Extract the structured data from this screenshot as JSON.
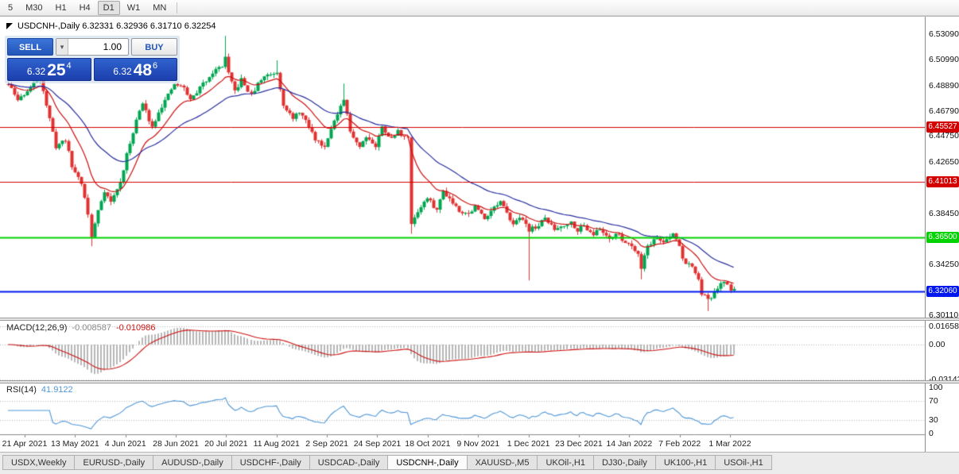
{
  "toolbar": {
    "timeframes": [
      "5",
      "M30",
      "H1",
      "H4",
      "D1",
      "W1",
      "MN"
    ],
    "active": "D1"
  },
  "chart": {
    "title": "USDCNH-,Daily 6.32331 6.32936 6.31710 6.32254"
  },
  "trade_panel": {
    "sell_label": "SELL",
    "buy_label": "BUY",
    "volume": "1.00",
    "sell_price": {
      "prefix": "6.32",
      "big": "25",
      "sup": "4"
    },
    "buy_price": {
      "prefix": "6.32",
      "big": "48",
      "sup": "6"
    }
  },
  "tabs": [
    {
      "label": "USDX,Weekly",
      "active": false
    },
    {
      "label": "EURUSD-,Daily",
      "active": false
    },
    {
      "label": "AUDUSD-,Daily",
      "active": false
    },
    {
      "label": "USDCHF-,Daily",
      "active": false
    },
    {
      "label": "USDCAD-,Daily",
      "active": false
    },
    {
      "label": "USDCNH-,Daily",
      "active": true
    },
    {
      "label": "XAUUSD-,M5",
      "active": false
    },
    {
      "label": "UKOil-,H1",
      "active": false
    },
    {
      "label": "DJ30-,Daily",
      "active": false
    },
    {
      "label": "UK100-,H1",
      "active": false
    },
    {
      "label": "USOil-,H1",
      "active": false
    }
  ],
  "chart_data": {
    "type": "candlestick",
    "symbol": "USDCNH-",
    "timeframe": "Daily",
    "ohlc": {
      "open": "6.32331",
      "high": "6.32936",
      "low": "6.31710",
      "close": "6.32254"
    },
    "y_range": [
      6.3011,
      6.5309
    ],
    "price_axis_ticks": [
      "6.53090",
      "6.50990",
      "6.48890",
      "6.46790",
      "6.44750",
      "6.42650",
      "6.38450",
      "6.34250",
      "6.30110"
    ],
    "x_dates": [
      "21 Apr 2021",
      "13 May 2021",
      "4 Jun 2021",
      "28 Jun 2021",
      "20 Jul 2021",
      "11 Aug 2021",
      "2 Sep 2021",
      "24 Sep 2021",
      "18 Oct 2021",
      "9 Nov 2021",
      "1 Dec 2021",
      "23 Dec 2021",
      "14 Jan 2022",
      "7 Feb 2022",
      "1 Mar 2022"
    ],
    "hlines": [
      {
        "price": 6.45527,
        "label": "6.45527",
        "color": "#d40000",
        "width": 1
      },
      {
        "price": 6.41013,
        "label": "6.41013",
        "color": "#d40000",
        "width": 1
      },
      {
        "price": 6.365,
        "label": "6.36500",
        "color": "#00d300",
        "width": 2
      },
      {
        "price": 6.3206,
        "label": "6.32060",
        "color": "#0018ee",
        "width": 2
      }
    ],
    "n_candles": 228,
    "seed": 11,
    "close_anchors": [
      [
        0,
        6.49
      ],
      [
        3,
        6.477
      ],
      [
        7,
        6.487
      ],
      [
        10,
        6.497
      ],
      [
        13,
        6.461
      ],
      [
        15,
        6.439
      ],
      [
        18,
        6.445
      ],
      [
        20,
        6.4226
      ],
      [
        23,
        6.4096
      ],
      [
        25,
        6.3838
      ],
      [
        26,
        6.3645
      ],
      [
        28,
        6.387
      ],
      [
        30,
        6.403
      ],
      [
        32,
        6.3935
      ],
      [
        35,
        6.4096
      ],
      [
        37,
        6.432
      ],
      [
        40,
        6.461
      ],
      [
        42,
        6.474
      ],
      [
        45,
        6.455
      ],
      [
        47,
        6.468
      ],
      [
        50,
        6.4806
      ],
      [
        52,
        6.49
      ],
      [
        55,
        6.487
      ],
      [
        57,
        6.477
      ],
      [
        60,
        6.487
      ],
      [
        62,
        6.4935
      ],
      [
        64,
        6.5
      ],
      [
        67,
        6.505
      ],
      [
        68,
        6.512
      ],
      [
        69,
        6.498
      ],
      [
        71,
        6.484
      ],
      [
        73,
        6.4935
      ],
      [
        76,
        6.4806
      ],
      [
        78,
        6.49
      ],
      [
        80,
        6.4968
      ],
      [
        84,
        6.5
      ],
      [
        86,
        6.474
      ],
      [
        89,
        6.461
      ],
      [
        91,
        6.468
      ],
      [
        94,
        6.455
      ],
      [
        96,
        6.445
      ],
      [
        99,
        6.439
      ],
      [
        101,
        6.455
      ],
      [
        103,
        6.4645
      ],
      [
        105,
        6.477
      ],
      [
        107,
        6.4515
      ],
      [
        110,
        6.439
      ],
      [
        112,
        6.448
      ],
      [
        115,
        6.439
      ],
      [
        117,
        6.455
      ],
      [
        120,
        6.445
      ],
      [
        122,
        6.4515
      ],
      [
        125,
        6.445
      ],
      [
        126,
        6.377
      ],
      [
        129,
        6.39
      ],
      [
        131,
        6.3967
      ],
      [
        134,
        6.387
      ],
      [
        136,
        6.403
      ],
      [
        139,
        6.3935
      ],
      [
        141,
        6.387
      ],
      [
        144,
        6.3838
      ],
      [
        146,
        6.39
      ],
      [
        149,
        6.3805
      ],
      [
        151,
        6.387
      ],
      [
        154,
        6.3935
      ],
      [
        156,
        6.3838
      ],
      [
        158,
        6.377
      ],
      [
        161,
        6.3805
      ],
      [
        163,
        6.371
      ],
      [
        166,
        6.3742
      ],
      [
        168,
        6.3805
      ],
      [
        171,
        6.371
      ],
      [
        173,
        6.3742
      ],
      [
        176,
        6.377
      ],
      [
        178,
        6.371
      ],
      [
        180,
        6.3742
      ],
      [
        183,
        6.3677
      ],
      [
        185,
        6.371
      ],
      [
        188,
        6.3645
      ],
      [
        190,
        6.3677
      ],
      [
        193,
        6.361
      ],
      [
        195,
        6.358
      ],
      [
        197,
        6.352
      ],
      [
        198,
        6.34
      ],
      [
        199,
        6.35
      ],
      [
        200,
        6.358
      ],
      [
        203,
        6.3645
      ],
      [
        205,
        6.361
      ],
      [
        207,
        6.3645
      ],
      [
        208,
        6.3677
      ],
      [
        210,
        6.358
      ],
      [
        211,
        6.348
      ],
      [
        212,
        6.342
      ],
      [
        213,
        6.345
      ],
      [
        215,
        6.3355
      ],
      [
        216,
        6.329
      ],
      [
        217,
        6.3193
      ],
      [
        219,
        6.313
      ],
      [
        220,
        6.316
      ],
      [
        221,
        6.3193
      ],
      [
        223,
        6.3257
      ],
      [
        224,
        6.329
      ],
      [
        226,
        6.3225
      ],
      [
        227,
        6.32254
      ]
    ],
    "wick_overrides": {
      "10": {
        "high": 6.503
      },
      "26": {
        "low": 6.3575
      },
      "68": {
        "high": 6.5295
      },
      "84": {
        "high": 6.5095
      },
      "105": {
        "high": 6.4905
      },
      "126": {
        "low": 6.3677
      },
      "163": {
        "low": 6.3295
      },
      "198": {
        "low": 6.3305
      },
      "219": {
        "low": 6.3045
      }
    },
    "moving_averages": [
      {
        "type": "EMA",
        "period": 13,
        "color": "#cc1111"
      },
      {
        "type": "EMA",
        "period": 34,
        "color": "#2a2f9e"
      }
    ],
    "indicators": {
      "macd": {
        "label": "MACD(12,26,9)",
        "value_main": "-0.008587",
        "value_signal": "-0.010986",
        "axis_ticks": [
          {
            "text": "0.01658",
            "v": 0.01658
          },
          {
            "text": "0.00",
            "v": 0
          },
          {
            "text": "-0.03142",
            "v": -0.03142
          }
        ]
      },
      "rsi": {
        "label": "RSI(14)",
        "value": "41.9122",
        "levels": [
          70,
          30
        ],
        "axis_ticks": [
          {
            "text": "100",
            "v": 100
          },
          {
            "text": "70",
            "v": 70
          },
          {
            "text": "30",
            "v": 30
          },
          {
            "text": "0",
            "v": 0
          }
        ]
      }
    },
    "colors": {
      "bull": "#00a651",
      "bear": "#e03232",
      "macd_hist": "#b8b8b8",
      "macd_signal": "#cc1111",
      "rsi": "#4f97d7",
      "grid": "#b5b5b5",
      "axis_line": "#8a8a8a"
    }
  }
}
